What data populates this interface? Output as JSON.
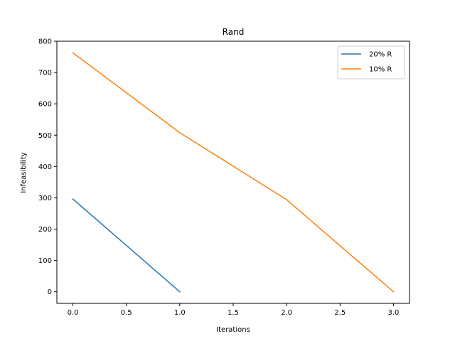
{
  "chart_data": {
    "type": "line",
    "title": "Rand",
    "xlabel": "Iterations",
    "ylabel": "Infeasibility",
    "xlim": [
      -0.15,
      3.15
    ],
    "ylim": [
      -37,
      800
    ],
    "xticks": [
      0.0,
      0.5,
      1.0,
      1.5,
      2.0,
      2.5,
      3.0
    ],
    "xtick_labels": [
      "0.0",
      "0.5",
      "1.0",
      "1.5",
      "2.0",
      "2.5",
      "3.0"
    ],
    "yticks": [
      0,
      100,
      200,
      300,
      400,
      500,
      600,
      700,
      800
    ],
    "ytick_labels": [
      "0",
      "100",
      "200",
      "300",
      "400",
      "500",
      "600",
      "700",
      "800"
    ],
    "grid": false,
    "legend_position": "top-right",
    "series": [
      {
        "name": "20% R",
        "color": "#1f77b4",
        "x": [
          0,
          1
        ],
        "y": [
          296,
          0
        ]
      },
      {
        "name": "10% R",
        "color": "#ff7f0e",
        "x": [
          0,
          1,
          2,
          3
        ],
        "y": [
          763,
          508,
          294,
          0
        ]
      }
    ]
  }
}
